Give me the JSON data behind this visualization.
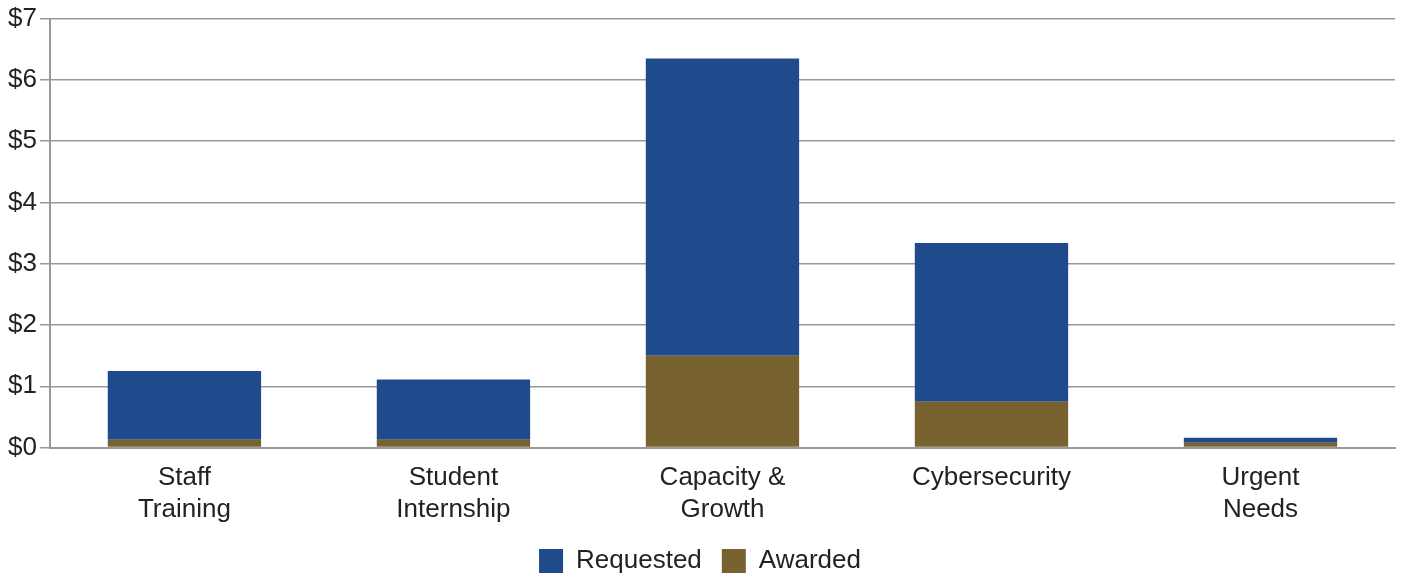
{
  "chart_data": {
    "type": "bar",
    "stacked": true,
    "categories": [
      [
        "Staff",
        "Training"
      ],
      [
        "Student",
        "Internship"
      ],
      [
        "Capacity &",
        "Growth"
      ],
      [
        "Cybersecurity"
      ],
      [
        "Urgent",
        "Needs"
      ]
    ],
    "series": [
      {
        "name": "Awarded",
        "color": "#786230",
        "values": [
          0.13,
          0.13,
          1.5,
          0.75,
          0.08
        ]
      },
      {
        "name": "Requested",
        "color": "#1f4a8c",
        "values": [
          1.12,
          0.98,
          4.85,
          2.59,
          0.08
        ]
      }
    ],
    "ylim": [
      0,
      7
    ],
    "yticks": [
      {
        "value": 0,
        "label": "$0"
      },
      {
        "value": 1,
        "label": "$1"
      },
      {
        "value": 2,
        "label": "$2"
      },
      {
        "value": 3,
        "label": "$3"
      },
      {
        "value": 4,
        "label": "$4"
      },
      {
        "value": 5,
        "label": "$5"
      },
      {
        "value": 6,
        "label": "$6"
      },
      {
        "value": 7,
        "label": "$7"
      }
    ],
    "grid": "y",
    "legend": "bottom"
  }
}
